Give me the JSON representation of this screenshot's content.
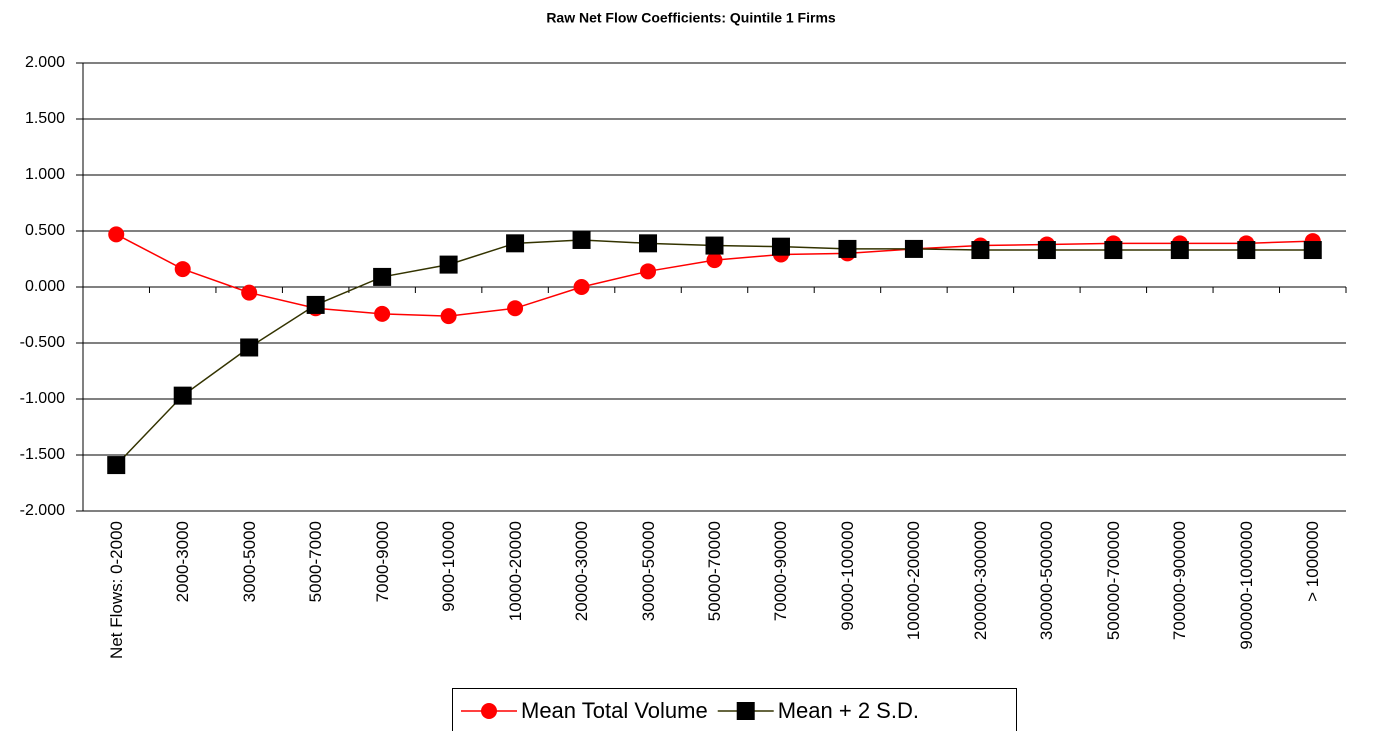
{
  "chart_data": {
    "type": "line",
    "title": "Raw Net Flow Coefficients: Quintile 1 Firms",
    "categories": [
      "Net Flows: 0-2000",
      "2000-3000",
      "3000-5000",
      "5000-7000",
      "7000-9000",
      "9000-10000",
      "10000-20000",
      "20000-30000",
      "30000-50000",
      "50000-70000",
      "70000-90000",
      "90000-100000",
      "100000-200000",
      "200000-300000",
      "300000-500000",
      "500000-700000",
      "700000-900000",
      "900000-1000000",
      "> 1000000"
    ],
    "series": [
      {
        "name": "Mean Total Volume",
        "color": "#ff0000",
        "marker": "circle",
        "values": [
          0.47,
          0.16,
          -0.05,
          -0.19,
          -0.24,
          -0.26,
          -0.19,
          0.0,
          0.14,
          0.24,
          0.29,
          0.3,
          0.34,
          0.37,
          0.38,
          0.39,
          0.39,
          0.39,
          0.41
        ]
      },
      {
        "name": "Mean + 2 S.D.",
        "color": "#333300",
        "marker": "square",
        "values": [
          -1.59,
          -0.97,
          -0.54,
          -0.16,
          0.09,
          0.2,
          0.39,
          0.42,
          0.39,
          0.37,
          0.36,
          0.34,
          0.34,
          0.33,
          0.33,
          0.33,
          0.33,
          0.33,
          0.33
        ]
      }
    ],
    "ylim": [
      -2,
      2
    ],
    "yticks": [
      {
        "value": -2,
        "label": "-2.000"
      },
      {
        "value": -1.5,
        "label": "-1.500"
      },
      {
        "value": -1,
        "label": "-1.000"
      },
      {
        "value": -0.5,
        "label": "-0.500"
      },
      {
        "value": 0,
        "label": "0.000"
      },
      {
        "value": 0.5,
        "label": "0.500"
      },
      {
        "value": 1,
        "label": "1.000"
      },
      {
        "value": 1.5,
        "label": "1.500"
      },
      {
        "value": 2,
        "label": "2.000"
      }
    ],
    "grid": true,
    "legend": "bottom"
  }
}
